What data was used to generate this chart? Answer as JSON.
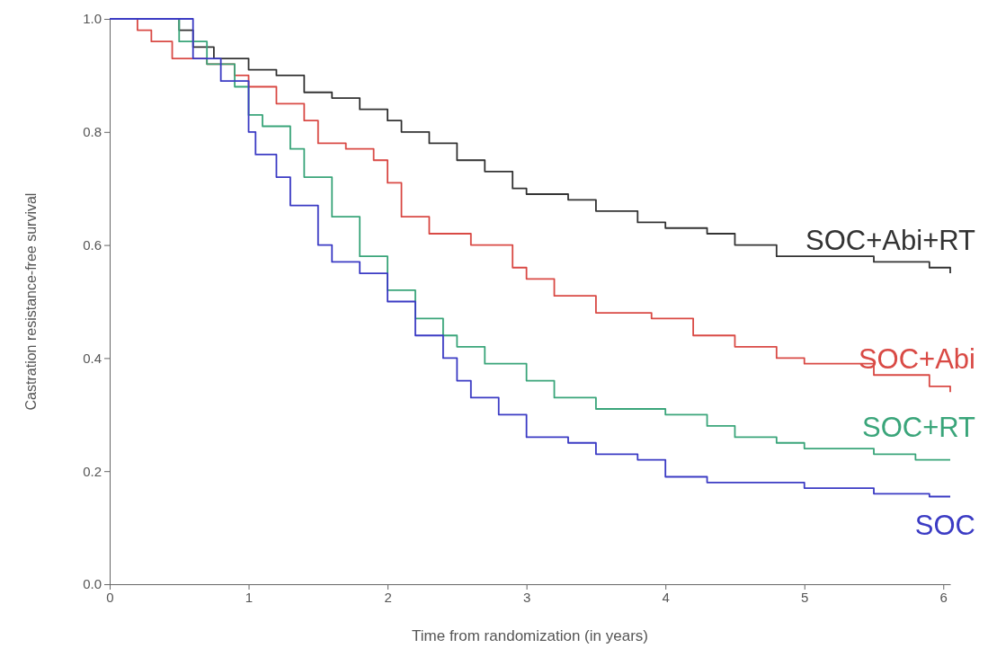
{
  "chart_data": {
    "type": "step",
    "xlabel": "Time from randomization (in years)",
    "ylabel": "Castration resistance-free survival",
    "xlim": [
      0,
      6.05
    ],
    "ylim": [
      0,
      1
    ],
    "xticks": [
      0,
      1,
      2,
      3,
      4,
      5,
      6
    ],
    "yticks": [
      {
        "value": 0,
        "label": "0.0"
      },
      {
        "value": 0.2,
        "label": "0.2"
      },
      {
        "value": 0.4,
        "label": "0.4"
      },
      {
        "value": 0.6,
        "label": "0.6"
      },
      {
        "value": 0.8,
        "label": "0.8"
      },
      {
        "value": 1,
        "label": "1.0"
      }
    ],
    "grid": false,
    "marker": "none",
    "line_style": "solid",
    "series": [
      {
        "name": "SOC+Abi+RT",
        "color": "#333333",
        "x": [
          0,
          0.4,
          0.5,
          0.6,
          0.75,
          1.0,
          1.2,
          1.4,
          1.6,
          1.8,
          2.0,
          2.1,
          2.3,
          2.5,
          2.7,
          2.9,
          3.0,
          3.3,
          3.5,
          3.8,
          4.0,
          4.3,
          4.5,
          4.8,
          5.0,
          5.5,
          5.9,
          6.05
        ],
        "values": [
          1,
          1,
          0.98,
          0.95,
          0.93,
          0.91,
          0.9,
          0.87,
          0.86,
          0.84,
          0.82,
          0.8,
          0.78,
          0.75,
          0.73,
          0.7,
          0.69,
          0.68,
          0.66,
          0.64,
          0.63,
          0.62,
          0.6,
          0.58,
          0.58,
          0.57,
          0.56,
          0.55
        ]
      },
      {
        "name": "SOC+Abi",
        "color": "#d94a45",
        "x": [
          0,
          0.1,
          0.2,
          0.3,
          0.45,
          0.7,
          0.9,
          1.0,
          1.2,
          1.4,
          1.5,
          1.7,
          1.9,
          2.0,
          2.1,
          2.3,
          2.6,
          2.9,
          3.0,
          3.2,
          3.5,
          3.9,
          4.2,
          4.5,
          4.8,
          5.0,
          5.5,
          5.9,
          6.05
        ],
        "values": [
          1,
          1,
          0.98,
          0.96,
          0.93,
          0.92,
          0.9,
          0.88,
          0.85,
          0.82,
          0.78,
          0.77,
          0.75,
          0.71,
          0.65,
          0.62,
          0.6,
          0.56,
          0.54,
          0.51,
          0.48,
          0.47,
          0.44,
          0.42,
          0.4,
          0.39,
          0.37,
          0.35,
          0.34
        ]
      },
      {
        "name": "SOC+RT",
        "color": "#3aa57a",
        "x": [
          0,
          0.45,
          0.5,
          0.7,
          0.9,
          1.0,
          1.1,
          1.3,
          1.4,
          1.6,
          1.8,
          2.0,
          2.2,
          2.4,
          2.5,
          2.7,
          3.0,
          3.2,
          3.5,
          4.0,
          4.3,
          4.5,
          4.8,
          5.0,
          5.5,
          5.8,
          6.05
        ],
        "values": [
          1,
          1,
          0.96,
          0.92,
          0.88,
          0.83,
          0.81,
          0.77,
          0.72,
          0.65,
          0.58,
          0.52,
          0.47,
          0.44,
          0.42,
          0.39,
          0.36,
          0.33,
          0.31,
          0.3,
          0.28,
          0.26,
          0.25,
          0.24,
          0.23,
          0.22,
          0.22
        ]
      },
      {
        "name": "SOC",
        "color": "#3b3bc4",
        "x": [
          0,
          0.45,
          0.6,
          0.8,
          1.0,
          1.05,
          1.2,
          1.3,
          1.5,
          1.6,
          1.8,
          2.0,
          2.2,
          2.4,
          2.5,
          2.6,
          2.8,
          3.0,
          3.3,
          3.5,
          3.8,
          4.0,
          4.3,
          4.6,
          5.0,
          5.5,
          5.9,
          6.05
        ],
        "values": [
          1,
          1,
          0.93,
          0.89,
          0.8,
          0.76,
          0.72,
          0.67,
          0.6,
          0.57,
          0.55,
          0.5,
          0.44,
          0.4,
          0.36,
          0.33,
          0.3,
          0.26,
          0.25,
          0.23,
          0.22,
          0.19,
          0.18,
          0.18,
          0.17,
          0.16,
          0.155,
          0.155
        ]
      }
    ]
  }
}
